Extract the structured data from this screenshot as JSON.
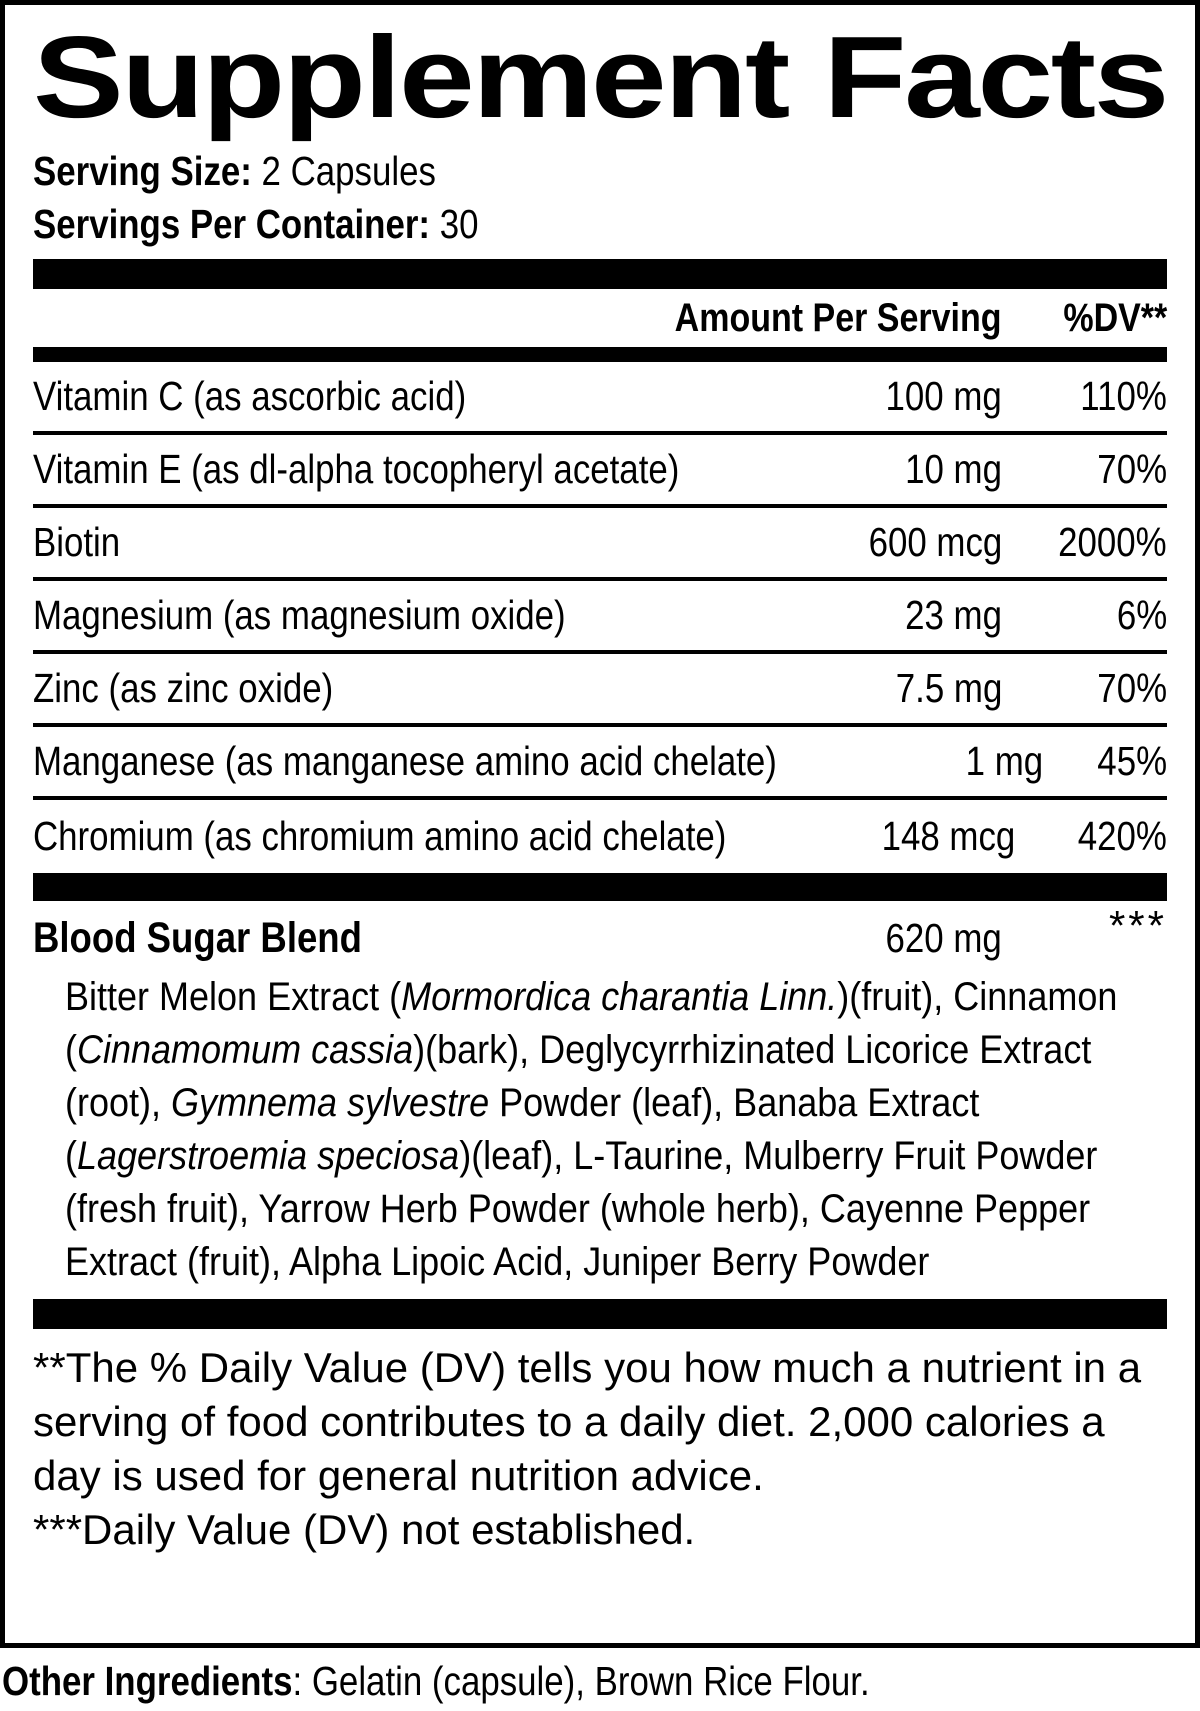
{
  "title": "Supplement Facts",
  "serving": {
    "size_label": "Serving Size:",
    "size_value": "2 Capsules",
    "per_container_label": "Servings Per Container:",
    "per_container_value": "30"
  },
  "columns": {
    "amount_header": "Amount Per Serving",
    "dv_header": "%DV**"
  },
  "nutrients": [
    {
      "label": "Vitamin C (as ascorbic acid)",
      "amount": "100 mg",
      "dv": "110%"
    },
    {
      "label": "Vitamin E (as dl-alpha tocopheryl acetate)",
      "amount": "10 mg",
      "dv": "70%"
    },
    {
      "label": "Biotin",
      "amount": "600 mcg",
      "dv": "2000%"
    },
    {
      "label": "Magnesium (as magnesium oxide)",
      "amount": "23 mg",
      "dv": "6%"
    },
    {
      "label": "Zinc (as zinc oxide)",
      "amount": "7.5 mg",
      "dv": "70%"
    },
    {
      "label": "Manganese (as manganese amino acid chelate)",
      "amount": "1 mg",
      "dv": "45%"
    },
    {
      "label": "Chromium (as chromium amino acid chelate)",
      "amount": "148 mcg",
      "dv": "420%"
    }
  ],
  "blend": {
    "name": "Blood Sugar Blend",
    "amount": "620 mg",
    "dv": "***",
    "ingredients_segments": [
      {
        "text": "Bitter Melon Extract (",
        "italic": false
      },
      {
        "text": "Mormordica charantia Linn.",
        "italic": true
      },
      {
        "text": ")(fruit), Cinnamon (",
        "italic": false
      },
      {
        "text": "Cinnamomum cassia",
        "italic": true
      },
      {
        "text": ")(bark), Deglycyrrhizinated Licorice Extract (root), ",
        "italic": false
      },
      {
        "text": "Gymnema sylvestre",
        "italic": true
      },
      {
        "text": " Powder (leaf), Banaba Extract (",
        "italic": false
      },
      {
        "text": "Lagerstroemia speciosa",
        "italic": true
      },
      {
        "text": ")(leaf), L-Taurine, Mulberry Fruit Powder (fresh fruit), Yarrow Herb Powder (whole herb), Cayenne Pepper Extract (fruit), Alpha Lipoic Acid, Juniper Berry Powder",
        "italic": false
      }
    ]
  },
  "footnotes": {
    "dv_note": "**The % Daily Value (DV) tells you how much a nutrient in a serving of food contributes to a daily diet. 2,000 calories a day is used for general nutrition advice.",
    "not_established_note": "***Daily Value (DV) not established."
  },
  "other_ingredients": {
    "label": "Other Ingredients",
    "value": ": Gelatin (capsule), Brown Rice Flour."
  },
  "colors": {
    "ink": "#000000",
    "paper": "#ffffff"
  }
}
